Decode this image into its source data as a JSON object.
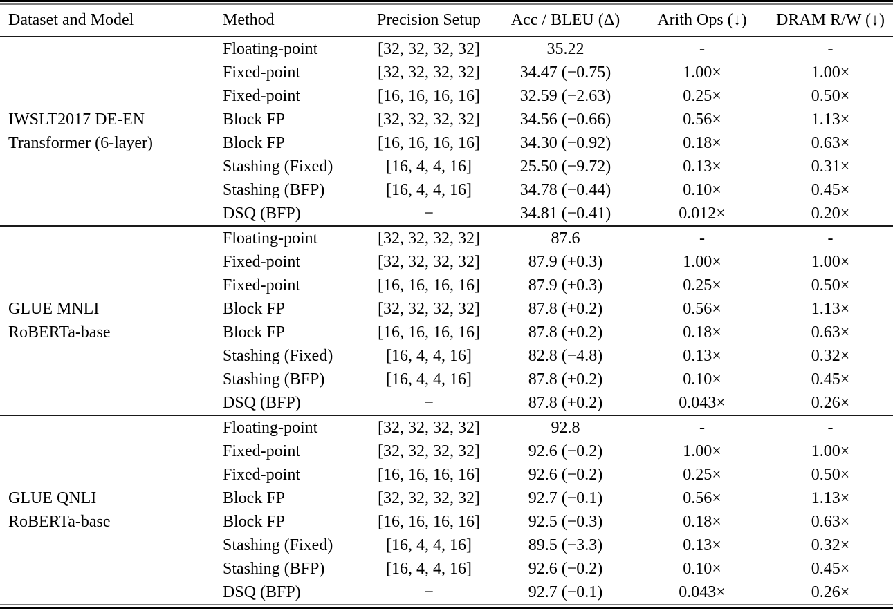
{
  "table": {
    "columns": [
      "Dataset and Model",
      "Method",
      "Precision Setup",
      "Acc / BLEU (Δ)",
      "Arith Ops (↓)",
      "DRAM R/W (↓)"
    ],
    "rule_colors": {
      "thick": "#000000",
      "thin": "#7d7d7d",
      "mid": "#1a1a1a"
    },
    "sections": [
      {
        "dataset_lines": [
          "IWSLT2017 DE-EN",
          "Transformer (6-layer)"
        ],
        "rows": [
          [
            "Floating-point",
            "[32, 32, 32, 32]",
            "35.22",
            "-",
            "-"
          ],
          [
            "Fixed-point",
            "[32, 32, 32, 32]",
            "34.47 (−0.75)",
            "1.00×",
            "1.00×"
          ],
          [
            "Fixed-point",
            "[16, 16, 16, 16]",
            "32.59 (−2.63)",
            "0.25×",
            "0.50×"
          ],
          [
            "Block FP",
            "[32, 32, 32, 32]",
            "34.56 (−0.66)",
            "0.56×",
            "1.13×"
          ],
          [
            "Block FP",
            "[16, 16, 16, 16]",
            "34.30 (−0.92)",
            "0.18×",
            "0.63×"
          ],
          [
            "Stashing (Fixed)",
            "[16, 4, 4, 16]",
            "25.50 (−9.72)",
            "0.13×",
            "0.31×"
          ],
          [
            "Stashing (BFP)",
            "[16, 4, 4, 16]",
            "34.78 (−0.44)",
            "0.10×",
            "0.45×"
          ],
          [
            "DSQ (BFP)",
            "−",
            "34.81 (−0.41)",
            "0.012×",
            "0.20×"
          ]
        ]
      },
      {
        "dataset_lines": [
          "GLUE MNLI",
          "RoBERTa-base"
        ],
        "rows": [
          [
            "Floating-point",
            "[32, 32, 32, 32]",
            "87.6",
            "-",
            "-"
          ],
          [
            "Fixed-point",
            "[32, 32, 32, 32]",
            "87.9 (+0.3)",
            "1.00×",
            "1.00×"
          ],
          [
            "Fixed-point",
            "[16, 16, 16, 16]",
            "87.9 (+0.3)",
            "0.25×",
            "0.50×"
          ],
          [
            "Block FP",
            "[32, 32, 32, 32]",
            "87.8 (+0.2)",
            "0.56×",
            "1.13×"
          ],
          [
            "Block FP",
            "[16, 16, 16, 16]",
            "87.8 (+0.2)",
            "0.18×",
            "0.63×"
          ],
          [
            "Stashing (Fixed)",
            "[16, 4, 4, 16]",
            "82.8 (−4.8)",
            "0.13×",
            "0.32×"
          ],
          [
            "Stashing (BFP)",
            "[16, 4, 4, 16]",
            "87.8 (+0.2)",
            "0.10×",
            "0.45×"
          ],
          [
            "DSQ (BFP)",
            "−",
            "87.8 (+0.2)",
            "0.043×",
            "0.26×"
          ]
        ]
      },
      {
        "dataset_lines": [
          "GLUE QNLI",
          "RoBERTa-base"
        ],
        "rows": [
          [
            "Floating-point",
            "[32, 32, 32, 32]",
            "92.8",
            "-",
            "-"
          ],
          [
            "Fixed-point",
            "[32, 32, 32, 32]",
            "92.6 (−0.2)",
            "1.00×",
            "1.00×"
          ],
          [
            "Fixed-point",
            "[16, 16, 16, 16]",
            "92.6 (−0.2)",
            "0.25×",
            "0.50×"
          ],
          [
            "Block FP",
            "[32, 32, 32, 32]",
            "92.7 (−0.1)",
            "0.56×",
            "1.13×"
          ],
          [
            "Block FP",
            "[16, 16, 16, 16]",
            "92.5 (−0.3)",
            "0.18×",
            "0.63×"
          ],
          [
            "Stashing (Fixed)",
            "[16, 4, 4, 16]",
            "89.5 (−3.3)",
            "0.13×",
            "0.32×"
          ],
          [
            "Stashing (BFP)",
            "[16, 4, 4, 16]",
            "92.6 (−0.2)",
            "0.10×",
            "0.45×"
          ],
          [
            "DSQ (BFP)",
            "−",
            "92.7 (−0.1)",
            "0.043×",
            "0.26×"
          ]
        ]
      }
    ]
  }
}
